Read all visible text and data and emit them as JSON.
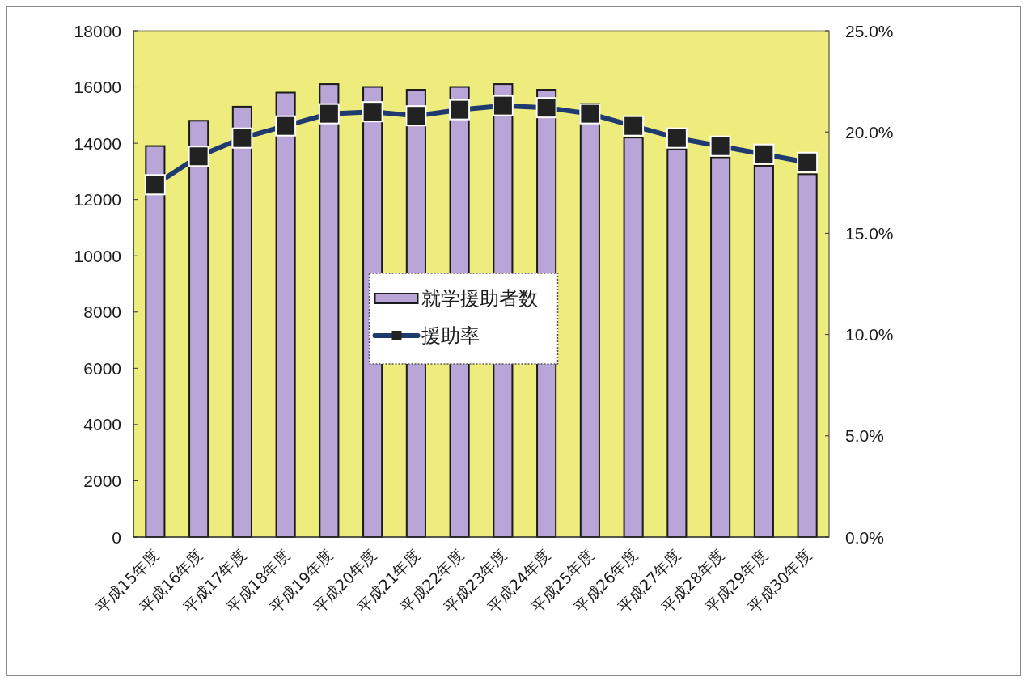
{
  "chart_data": {
    "type": "bar",
    "categories": [
      "平成15年度",
      "平成16年度",
      "平成17年度",
      "平成18年度",
      "平成19年度",
      "平成20年度",
      "平成21年度",
      "平成22年度",
      "平成23年度",
      "平成24年度",
      "平成25年度",
      "平成26年度",
      "平成27年度",
      "平成28年度",
      "平成29年度",
      "平成30年度"
    ],
    "series": [
      {
        "name": "就学援助者数",
        "color": "#b9a5d8",
        "values": [
          13900,
          14800,
          15300,
          15800,
          16100,
          16000,
          15900,
          16000,
          16100,
          15900,
          15400,
          14200,
          13800,
          13500,
          13200,
          12900
        ]
      },
      {
        "name": "援助率",
        "type": "line",
        "axis": "y2",
        "color": "#1f3a6e",
        "values": [
          17.4,
          18.8,
          19.7,
          20.3,
          20.9,
          21.0,
          20.8,
          21.1,
          21.3,
          21.2,
          20.9,
          20.3,
          19.7,
          19.3,
          18.9,
          18.5
        ]
      }
    ],
    "ylim": [
      0,
      18000
    ],
    "yticks": [
      0,
      2000,
      4000,
      6000,
      8000,
      10000,
      12000,
      14000,
      16000,
      18000
    ],
    "y2lim": [
      0,
      25
    ],
    "y2ticks": [
      {
        "value": 0,
        "label": "0.0%"
      },
      {
        "value": 5,
        "label": "5.0%"
      },
      {
        "value": 10,
        "label": "10.0%"
      },
      {
        "value": 15,
        "label": "15.0%"
      },
      {
        "value": 20,
        "label": "20.0%"
      },
      {
        "value": 25,
        "label": "25.0%"
      }
    ],
    "legend": "center",
    "marker": "square"
  }
}
